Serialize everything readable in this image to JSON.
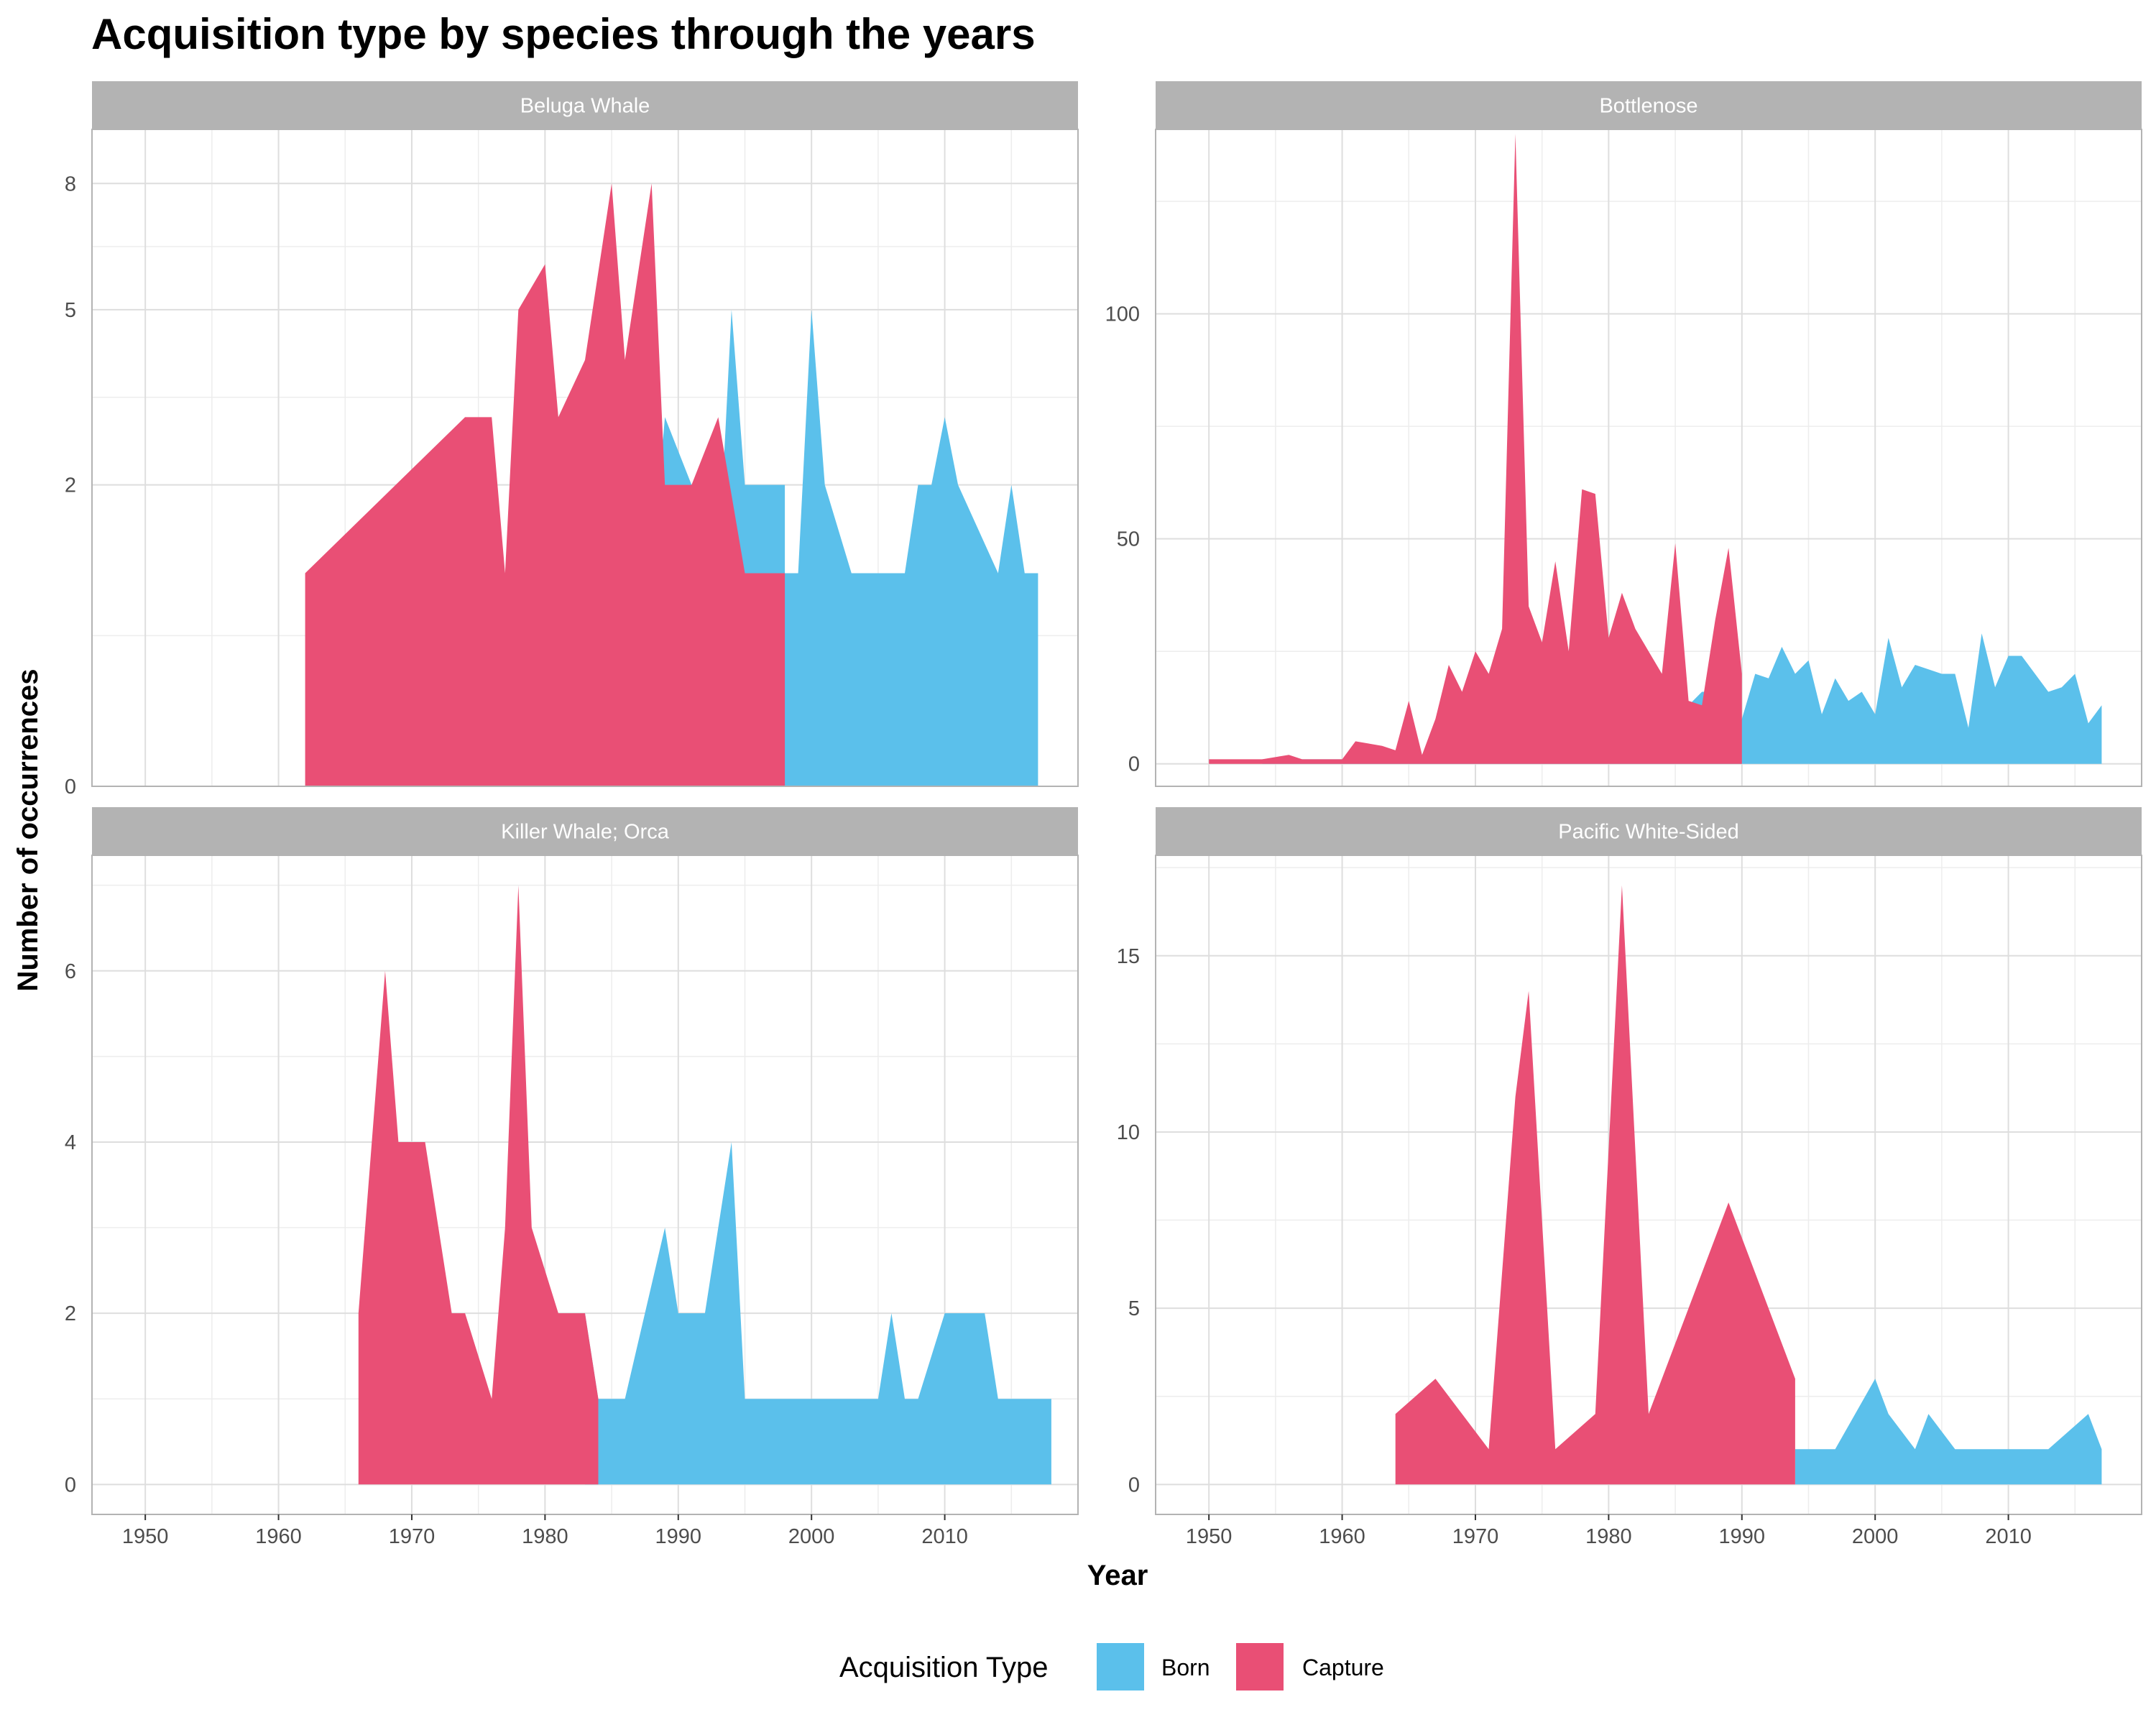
{
  "chart_data": {
    "type": "area",
    "title": "Acquisition type by species through the years",
    "xlabel": "Year",
    "ylabel": "Number of occurrences",
    "x_ticks": [
      1950,
      1960,
      1970,
      1980,
      1990,
      2000,
      2010
    ],
    "xlim": [
      1946,
      2020
    ],
    "legend": {
      "title": "Acquisition Type",
      "position": "bottom",
      "entries": [
        {
          "name": "Born",
          "color": "#5bc0eb"
        },
        {
          "name": "Capture",
          "color": "#e94f75"
        }
      ]
    },
    "facets": [
      {
        "name": "Beluga Whale",
        "scale": "sqrt",
        "ylim": [
          0,
          9.5
        ],
        "y_ticks": [
          0,
          2,
          5,
          8
        ],
        "series": [
          {
            "name": "Capture",
            "points": [
              [
                1962,
                1
              ],
              [
                1974,
                3
              ],
              [
                1976,
                3
              ],
              [
                1977,
                1
              ],
              [
                1978,
                5
              ],
              [
                1980,
                6
              ],
              [
                1981,
                3
              ],
              [
                1983,
                4
              ],
              [
                1985,
                8
              ],
              [
                1986,
                4
              ],
              [
                1988,
                8
              ],
              [
                1989,
                2
              ],
              [
                1991,
                2
              ],
              [
                1993,
                3
              ],
              [
                1995,
                1
              ],
              [
                1998,
                1
              ],
              [
                1998,
                0
              ]
            ]
          },
          {
            "name": "Born",
            "points": [
              [
                1983,
                1
              ],
              [
                1985,
                1
              ],
              [
                1986,
                1
              ],
              [
                1988,
                1
              ],
              [
                1989,
                3
              ],
              [
                1991,
                2
              ],
              [
                1992,
                2
              ],
              [
                1993,
                1
              ],
              [
                1994,
                5
              ],
              [
                1995,
                2
              ],
              [
                1998,
                2
              ],
              [
                1998,
                1
              ],
              [
                1999,
                1
              ],
              [
                2000,
                5
              ],
              [
                2001,
                2
              ],
              [
                2003,
                1
              ],
              [
                2007,
                1
              ],
              [
                2008,
                2
              ],
              [
                2009,
                2
              ],
              [
                2010,
                3
              ],
              [
                2011,
                2
              ],
              [
                2014,
                1
              ],
              [
                2015,
                2
              ],
              [
                2016,
                1
              ],
              [
                2017,
                1
              ]
            ]
          }
        ]
      },
      {
        "name": "Bottlenose",
        "scale": "linear",
        "ylim": [
          -5,
          141
        ],
        "y_ticks": [
          0,
          50,
          100
        ],
        "series": [
          {
            "name": "Capture",
            "points": [
              [
                1950,
                1
              ],
              [
                1953,
                1
              ],
              [
                1954,
                1
              ],
              [
                1956,
                2
              ],
              [
                1957,
                1
              ],
              [
                1960,
                1
              ],
              [
                1961,
                5
              ],
              [
                1963,
                4
              ],
              [
                1964,
                3
              ],
              [
                1965,
                14
              ],
              [
                1966,
                2
              ],
              [
                1967,
                10
              ],
              [
                1968,
                22
              ],
              [
                1969,
                16
              ],
              [
                1970,
                25
              ],
              [
                1971,
                20
              ],
              [
                1972,
                30
              ],
              [
                1973,
                140
              ],
              [
                1974,
                35
              ],
              [
                1975,
                27
              ],
              [
                1976,
                45
              ],
              [
                1977,
                25
              ],
              [
                1978,
                61
              ],
              [
                1979,
                60
              ],
              [
                1980,
                28
              ],
              [
                1981,
                38
              ],
              [
                1982,
                30
              ],
              [
                1983,
                25
              ],
              [
                1984,
                20
              ],
              [
                1985,
                49
              ],
              [
                1986,
                14
              ],
              [
                1987,
                13
              ],
              [
                1988,
                32
              ],
              [
                1989,
                48
              ],
              [
                1990,
                20
              ],
              [
                1990,
                0
              ]
            ]
          },
          {
            "name": "Born",
            "points": [
              [
                1954,
                1
              ],
              [
                1956,
                1
              ],
              [
                1957,
                1
              ],
              [
                1960,
                1
              ],
              [
                1961,
                1
              ],
              [
                1963,
                1
              ],
              [
                1964,
                1
              ],
              [
                1965,
                1
              ],
              [
                1966,
                1
              ],
              [
                1967,
                1
              ],
              [
                1968,
                1
              ],
              [
                1969,
                5
              ],
              [
                1970,
                4
              ],
              [
                1971,
                1
              ],
              [
                1972,
                1
              ],
              [
                1973,
                1
              ],
              [
                1974,
                5
              ],
              [
                1975,
                1
              ],
              [
                1976,
                5
              ],
              [
                1977,
                1
              ],
              [
                1978,
                4
              ],
              [
                1979,
                9
              ],
              [
                1980,
                7
              ],
              [
                1981,
                9
              ],
              [
                1982,
                14
              ],
              [
                1983,
                11
              ],
              [
                1984,
                11
              ],
              [
                1985,
                15
              ],
              [
                1986,
                13
              ],
              [
                1987,
                16
              ],
              [
                1988,
                16
              ],
              [
                1989,
                11
              ],
              [
                1990,
                10
              ],
              [
                1991,
                20
              ],
              [
                1992,
                19
              ],
              [
                1993,
                26
              ],
              [
                1994,
                20
              ],
              [
                1995,
                23
              ],
              [
                1996,
                11
              ],
              [
                1997,
                19
              ],
              [
                1998,
                14
              ],
              [
                1999,
                16
              ],
              [
                2000,
                11
              ],
              [
                2001,
                28
              ],
              [
                2002,
                17
              ],
              [
                2003,
                22
              ],
              [
                2004,
                21
              ],
              [
                2005,
                20
              ],
              [
                2006,
                20
              ],
              [
                2007,
                8
              ],
              [
                2008,
                29
              ],
              [
                2009,
                17
              ],
              [
                2010,
                24
              ],
              [
                2011,
                24
              ],
              [
                2013,
                16
              ],
              [
                2014,
                17
              ],
              [
                2015,
                20
              ],
              [
                2016,
                9
              ],
              [
                2017,
                13
              ]
            ]
          }
        ]
      },
      {
        "name": "Killer Whale; Orca",
        "scale": "linear",
        "ylim": [
          -0.35,
          7.35
        ],
        "y_ticks": [
          0,
          2,
          4,
          6
        ],
        "series": [
          {
            "name": "Capture",
            "points": [
              [
                1966,
                0
              ],
              [
                1966,
                2
              ],
              [
                1968,
                6
              ],
              [
                1969,
                4
              ],
              [
                1971,
                4
              ],
              [
                1973,
                2
              ],
              [
                1974,
                2
              ],
              [
                1976,
                1
              ],
              [
                1977,
                3
              ],
              [
                1978,
                7
              ],
              [
                1979,
                3
              ],
              [
                1981,
                2
              ],
              [
                1983,
                2
              ],
              [
                1984,
                1
              ],
              [
                1984,
                0
              ]
            ]
          },
          {
            "name": "Born",
            "points": [
              [
                1983,
                1
              ],
              [
                1983,
                2
              ],
              [
                1984,
                1
              ],
              [
                1986,
                1
              ],
              [
                1989,
                3
              ],
              [
                1990,
                2
              ],
              [
                1992,
                2
              ],
              [
                1994,
                4
              ],
              [
                1995,
                1
              ],
              [
                2005,
                1
              ],
              [
                2006,
                2
              ],
              [
                2007,
                1
              ],
              [
                2008,
                1
              ],
              [
                2010,
                2
              ],
              [
                2013,
                2
              ],
              [
                2014,
                1
              ],
              [
                2018,
                1
              ]
            ]
          }
        ]
      },
      {
        "name": "Pacific White-Sided",
        "scale": "linear",
        "ylim": [
          -0.85,
          17.85
        ],
        "y_ticks": [
          0,
          5,
          10,
          15
        ],
        "series": [
          {
            "name": "Capture",
            "points": [
              [
                1964,
                0
              ],
              [
                1964,
                2
              ],
              [
                1967,
                3
              ],
              [
                1971,
                1
              ],
              [
                1973,
                11
              ],
              [
                1974,
                14
              ],
              [
                1976,
                1
              ],
              [
                1979,
                2
              ],
              [
                1981,
                17
              ],
              [
                1983,
                2
              ],
              [
                1989,
                8
              ],
              [
                1994,
                3
              ],
              [
                1994,
                0
              ]
            ]
          },
          {
            "name": "Born",
            "points": [
              [
                1994,
                1
              ],
              [
                1997,
                1
              ],
              [
                2000,
                3
              ],
              [
                2001,
                2
              ],
              [
                2003,
                1
              ],
              [
                2004,
                2
              ],
              [
                2006,
                1
              ],
              [
                2013,
                1
              ],
              [
                2016,
                2
              ],
              [
                2017,
                1
              ]
            ]
          }
        ]
      }
    ]
  }
}
